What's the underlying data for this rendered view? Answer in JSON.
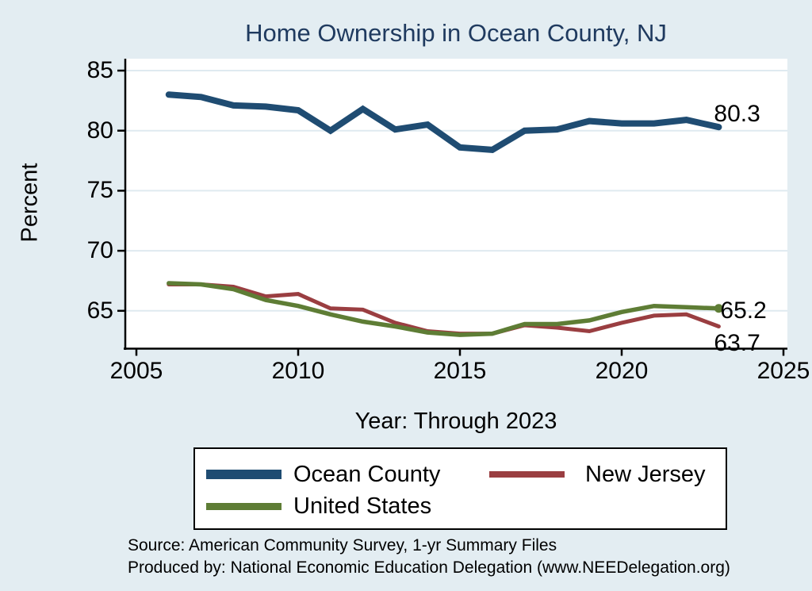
{
  "title": "Home Ownership in Ocean County, NJ",
  "colors": {
    "background": "#e3edf2",
    "plot_background": "#ffffff",
    "gridline": "#dfeaf0",
    "axis": "#000000",
    "title_text": "#1f3a5f",
    "ocean_county": "#1f4c72",
    "new_jersey": "#9a3e41",
    "united_states": "#5e7d35"
  },
  "chart_data": {
    "type": "line",
    "title": "Home Ownership in Ocean County, NJ",
    "xlabel": "Year: Through 2023",
    "ylabel": "Percent",
    "x": [
      2006,
      2007,
      2008,
      2009,
      2010,
      2011,
      2012,
      2013,
      2014,
      2015,
      2016,
      2017,
      2018,
      2019,
      2020,
      2021,
      2022,
      2023
    ],
    "series": [
      {
        "name": "Ocean County",
        "color": "#1f4c72",
        "line_width": 8,
        "end_label": "80.3",
        "end_label_offset": [
          -6,
          -33
        ],
        "end_marker": false,
        "values": [
          83.0,
          82.8,
          82.1,
          82.0,
          81.7,
          80.0,
          81.8,
          80.1,
          80.5,
          78.6,
          78.4,
          80.0,
          80.1,
          80.8,
          80.6,
          80.6,
          80.9,
          80.3
        ]
      },
      {
        "name": "New Jersey",
        "color": "#9a3e41",
        "line_width": 5,
        "end_label": "63.7",
        "end_label_offset": [
          -6,
          5
        ],
        "end_marker": false,
        "values": [
          67.2,
          67.2,
          67.0,
          66.2,
          66.4,
          65.2,
          65.1,
          64.0,
          63.3,
          63.1,
          63.1,
          63.8,
          63.6,
          63.3,
          64.0,
          64.6,
          64.7,
          63.7
        ]
      },
      {
        "name": "United States",
        "color": "#5e7d35",
        "line_width": 5.5,
        "end_label": "65.2",
        "end_label_offset": [
          2,
          -14
        ],
        "end_marker": true,
        "values": [
          67.3,
          67.2,
          66.8,
          65.9,
          65.4,
          64.7,
          64.1,
          63.7,
          63.2,
          63.0,
          63.1,
          63.9,
          63.9,
          64.2,
          64.9,
          65.4,
          65.3,
          65.2
        ]
      }
    ],
    "xticks": [
      2005,
      2010,
      2015,
      2020,
      2025
    ],
    "yticks": [
      65,
      70,
      75,
      80,
      85
    ],
    "xlim": [
      2005,
      2025
    ],
    "ylim": [
      61.9,
      86.0
    ],
    "grid": true,
    "legend_position": "bottom"
  },
  "footer": {
    "line1": "Source: American Community Survey, 1-yr Summary Files",
    "line2": "Produced by: National Economic Education Delegation (www.NEEDelegation.org)"
  }
}
